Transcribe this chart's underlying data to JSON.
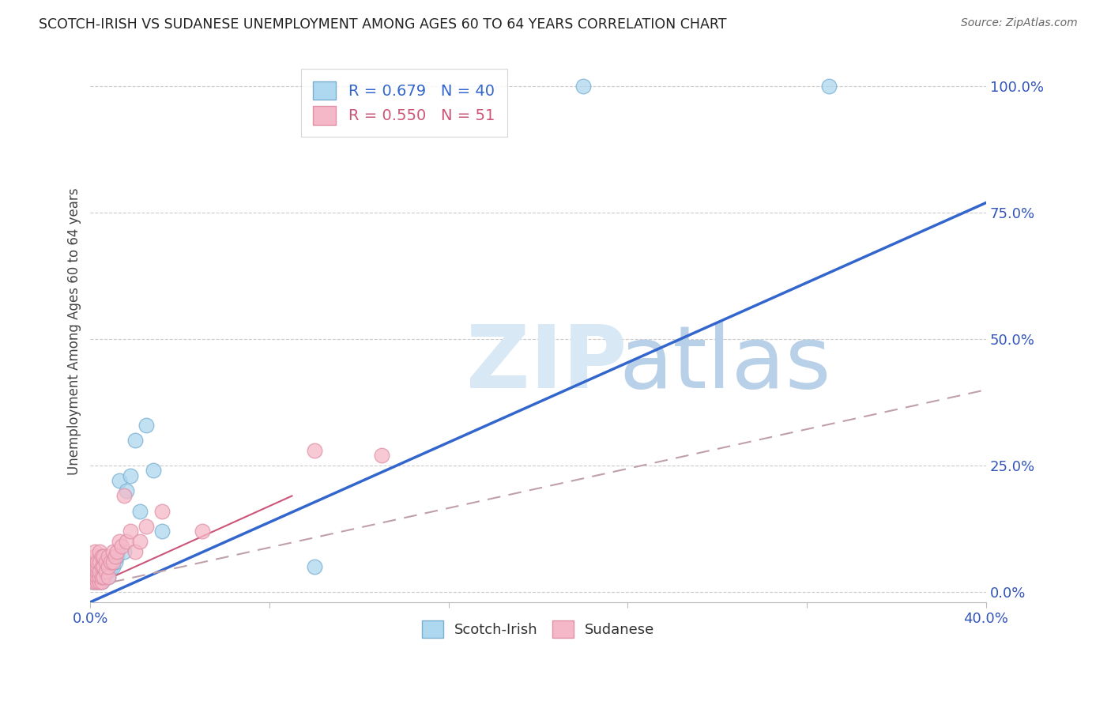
{
  "title": "SCOTCH-IRISH VS SUDANESE UNEMPLOYMENT AMONG AGES 60 TO 64 YEARS CORRELATION CHART",
  "source": "Source: ZipAtlas.com",
  "ylabel": "Unemployment Among Ages 60 to 64 years",
  "xlim": [
    0.0,
    0.4
  ],
  "ylim": [
    -0.02,
    1.05
  ],
  "xtick_vals": [
    0.0,
    0.08,
    0.16,
    0.24,
    0.32,
    0.4
  ],
  "xtick_labels_show": [
    "0.0%",
    "",
    "",
    "",
    "",
    "40.0%"
  ],
  "ytick_vals_right": [
    0.0,
    0.25,
    0.5,
    0.75,
    1.0
  ],
  "ytick_labels_right": [
    "0.0%",
    "25.0%",
    "50.0%",
    "75.0%",
    "100.0%"
  ],
  "scotch_irish_R": "0.679",
  "scotch_irish_N": "40",
  "sudanese_R": "0.550",
  "sudanese_N": "51",
  "scotch_irish_color": "#add8f0",
  "scotch_irish_edge_color": "#7aafd0",
  "scotch_irish_line_color": "#3366cc",
  "sudanese_color": "#f5b8c8",
  "sudanese_edge_color": "#e090a8",
  "sudanese_line_color": "#cc5577",
  "sudanese_dash_color": "#c0a0a8",
  "watermark_zip_color": "#d8e8f5",
  "watermark_atlas_color": "#b8d0e8",
  "scotch_irish_x": [
    0.001,
    0.001,
    0.001,
    0.002,
    0.002,
    0.002,
    0.002,
    0.003,
    0.003,
    0.003,
    0.003,
    0.004,
    0.004,
    0.004,
    0.004,
    0.005,
    0.005,
    0.005,
    0.005,
    0.006,
    0.006,
    0.007,
    0.008,
    0.008,
    0.009,
    0.01,
    0.011,
    0.012,
    0.013,
    0.015,
    0.016,
    0.018,
    0.02,
    0.022,
    0.025,
    0.028,
    0.032,
    0.1,
    0.22,
    0.33
  ],
  "scotch_irish_y": [
    0.02,
    0.03,
    0.04,
    0.02,
    0.03,
    0.04,
    0.05,
    0.02,
    0.03,
    0.04,
    0.05,
    0.02,
    0.03,
    0.04,
    0.06,
    0.02,
    0.03,
    0.05,
    0.07,
    0.03,
    0.06,
    0.04,
    0.03,
    0.06,
    0.05,
    0.05,
    0.06,
    0.07,
    0.22,
    0.08,
    0.2,
    0.23,
    0.3,
    0.16,
    0.33,
    0.24,
    0.12,
    0.05,
    1.0,
    1.0
  ],
  "sudanese_x": [
    0.001,
    0.001,
    0.001,
    0.001,
    0.001,
    0.002,
    0.002,
    0.002,
    0.002,
    0.002,
    0.002,
    0.002,
    0.003,
    0.003,
    0.003,
    0.003,
    0.003,
    0.004,
    0.004,
    0.004,
    0.004,
    0.004,
    0.005,
    0.005,
    0.005,
    0.005,
    0.006,
    0.006,
    0.006,
    0.007,
    0.007,
    0.008,
    0.008,
    0.008,
    0.009,
    0.01,
    0.01,
    0.011,
    0.012,
    0.013,
    0.014,
    0.015,
    0.016,
    0.018,
    0.02,
    0.022,
    0.025,
    0.032,
    0.05,
    0.1,
    0.13
  ],
  "sudanese_y": [
    0.02,
    0.03,
    0.04,
    0.05,
    0.06,
    0.02,
    0.03,
    0.04,
    0.05,
    0.06,
    0.07,
    0.08,
    0.02,
    0.03,
    0.04,
    0.05,
    0.06,
    0.02,
    0.03,
    0.04,
    0.06,
    0.08,
    0.02,
    0.03,
    0.05,
    0.07,
    0.03,
    0.05,
    0.07,
    0.04,
    0.06,
    0.03,
    0.05,
    0.07,
    0.06,
    0.06,
    0.08,
    0.07,
    0.08,
    0.1,
    0.09,
    0.19,
    0.1,
    0.12,
    0.08,
    0.1,
    0.13,
    0.16,
    0.12,
    0.28,
    0.27
  ],
  "blue_line_x": [
    0.0,
    0.4
  ],
  "blue_line_y": [
    -0.02,
    0.77
  ],
  "pink_line_x": [
    0.0,
    0.4
  ],
  "pink_line_y": [
    0.01,
    0.4
  ]
}
